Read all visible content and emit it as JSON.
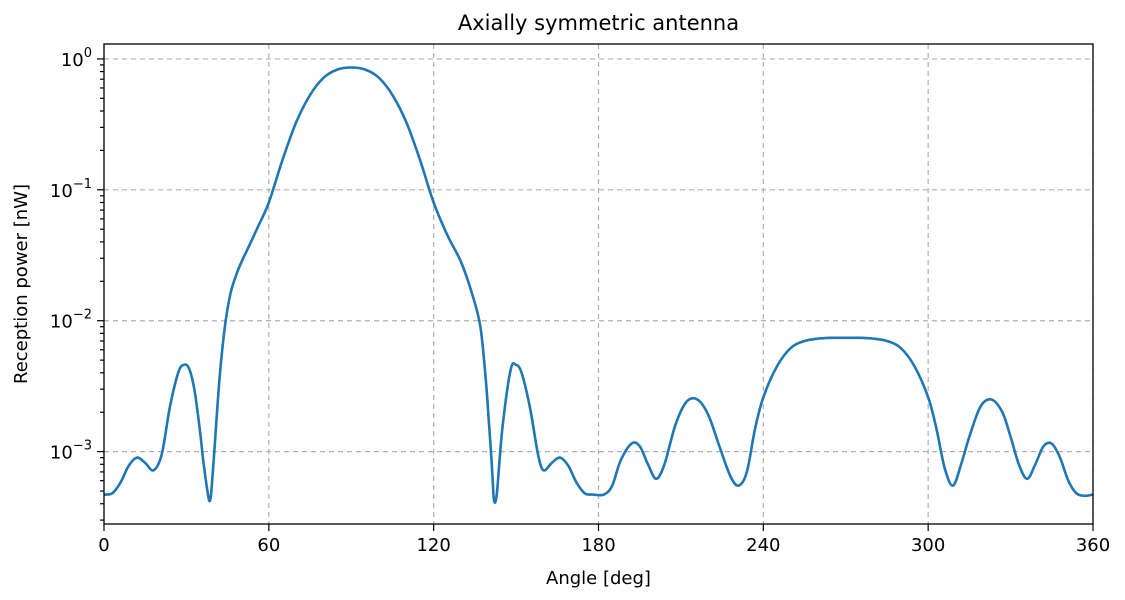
{
  "chart_data": {
    "type": "line",
    "title": "Axially symmetric antenna",
    "xlabel": "Angle [deg]",
    "ylabel": "Reception power [nW]",
    "xlim": [
      0,
      360
    ],
    "ylim": [
      0.00028,
      1.3
    ],
    "yscale": "log",
    "grid": true,
    "x_ticks": [
      0,
      60,
      120,
      180,
      240,
      300,
      360
    ],
    "y_ticks": [
      {
        "value": 0.001,
        "base": "10",
        "exp": "−3"
      },
      {
        "value": 0.01,
        "base": "10",
        "exp": "−2"
      },
      {
        "value": 0.1,
        "base": "10",
        "exp": "−1"
      },
      {
        "value": 1,
        "base": "10",
        "exp": "0"
      }
    ],
    "series": [
      {
        "color": "#1f77b4",
        "x": [
          0,
          3,
          6,
          9,
          12,
          15,
          18,
          21,
          24,
          27,
          29,
          31,
          33,
          35,
          36,
          37,
          38,
          38.5,
          39,
          40,
          42,
          44,
          46,
          48,
          50,
          53,
          56,
          60,
          65,
          70,
          75,
          80,
          85,
          90,
          95,
          100,
          105,
          110,
          115,
          120,
          125,
          130,
          134,
          137,
          139,
          140,
          141,
          141.5,
          142,
          143,
          145,
          148,
          150,
          152,
          155,
          158,
          160,
          163,
          166,
          169,
          172,
          175,
          178,
          182,
          185,
          188,
          192,
          195,
          198,
          201,
          204,
          208,
          212,
          216,
          220,
          224,
          228,
          231,
          234,
          237,
          240,
          245,
          250,
          255,
          260,
          265,
          270,
          275,
          280,
          285,
          290,
          295,
          300,
          303,
          306,
          309,
          312,
          315,
          319,
          323,
          327,
          330,
          333,
          336,
          339,
          342,
          345,
          348,
          351,
          354,
          357,
          360
        ],
        "y": [
          0.00047,
          0.00048,
          0.00058,
          0.00078,
          0.0009,
          0.00082,
          0.00072,
          0.00095,
          0.0022,
          0.004,
          0.0046,
          0.0043,
          0.0029,
          0.0014,
          0.0009,
          0.00062,
          0.00045,
          0.00042,
          0.00048,
          0.0009,
          0.0035,
          0.009,
          0.016,
          0.022,
          0.028,
          0.038,
          0.052,
          0.08,
          0.17,
          0.33,
          0.53,
          0.72,
          0.83,
          0.86,
          0.83,
          0.72,
          0.53,
          0.33,
          0.17,
          0.08,
          0.045,
          0.028,
          0.016,
          0.009,
          0.0035,
          0.0018,
          0.0009,
          0.0006,
          0.00042,
          0.00048,
          0.0015,
          0.0042,
          0.0046,
          0.004,
          0.0022,
          0.00095,
          0.00072,
          0.00082,
          0.0009,
          0.00078,
          0.00058,
          0.00048,
          0.00047,
          0.00047,
          0.00055,
          0.00085,
          0.00115,
          0.0011,
          0.0008,
          0.00062,
          0.0008,
          0.0016,
          0.0024,
          0.0025,
          0.0019,
          0.0011,
          0.00065,
          0.00055,
          0.0007,
          0.0015,
          0.0026,
          0.0045,
          0.0062,
          0.007,
          0.0073,
          0.0074,
          0.0074,
          0.0074,
          0.0073,
          0.007,
          0.0062,
          0.0045,
          0.0026,
          0.0015,
          0.00075,
          0.00055,
          0.0008,
          0.0013,
          0.0022,
          0.0025,
          0.002,
          0.0013,
          0.0008,
          0.00062,
          0.0008,
          0.0011,
          0.00115,
          0.0009,
          0.0006,
          0.00048,
          0.00046,
          0.00047
        ]
      }
    ]
  }
}
